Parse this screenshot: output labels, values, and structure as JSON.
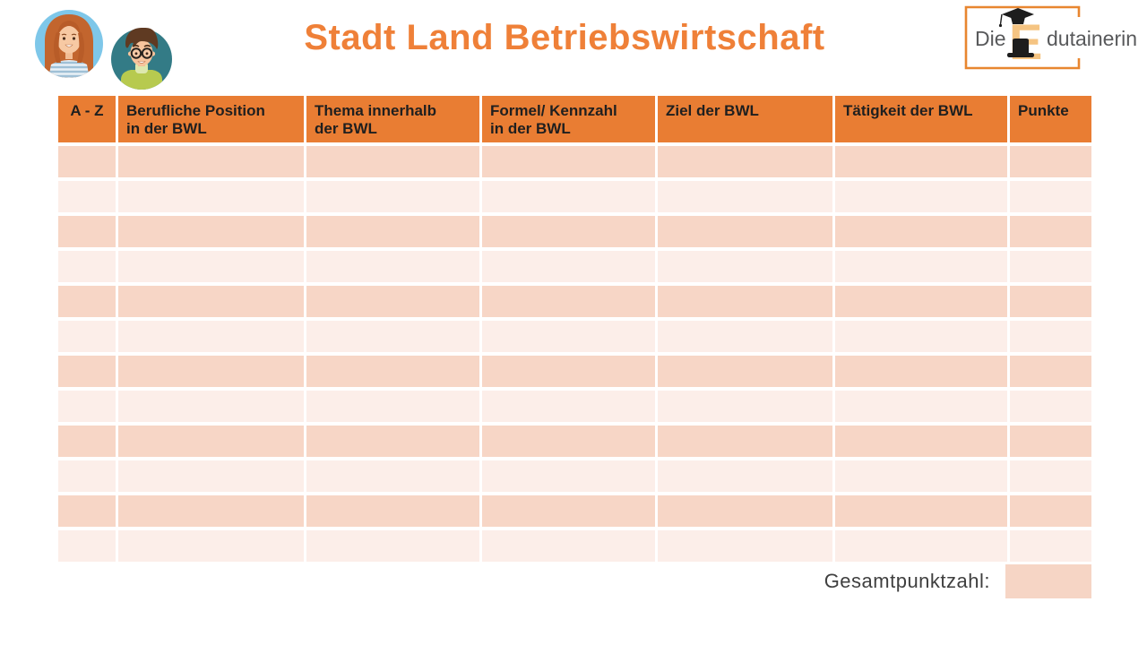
{
  "page": {
    "title": "Stadt Land Betriebswirtschaft"
  },
  "branding": {
    "logo_prefix": "Die",
    "logo_letter": "E",
    "logo_suffix": "dutainerin",
    "icons": {
      "avatar_left": "female-student-avatar",
      "avatar_right": "male-student-avatar",
      "logo_cap": "graduation-cap",
      "logo_hat": "top-hat"
    }
  },
  "table": {
    "columns": [
      "A - Z",
      "Berufliche Position\nin der BWL",
      "Thema innerhalb\nder BWL",
      "Formel/ Kennzahl\nin der BWL",
      "Ziel der BWL",
      "Tätigkeit der BWL",
      "Punkte"
    ],
    "row_count": 12,
    "rows": [
      [
        "",
        "",
        "",
        "",
        "",
        "",
        ""
      ],
      [
        "",
        "",
        "",
        "",
        "",
        "",
        ""
      ],
      [
        "",
        "",
        "",
        "",
        "",
        "",
        ""
      ],
      [
        "",
        "",
        "",
        "",
        "",
        "",
        ""
      ],
      [
        "",
        "",
        "",
        "",
        "",
        "",
        ""
      ],
      [
        "",
        "",
        "",
        "",
        "",
        "",
        ""
      ],
      [
        "",
        "",
        "",
        "",
        "",
        "",
        ""
      ],
      [
        "",
        "",
        "",
        "",
        "",
        "",
        ""
      ],
      [
        "",
        "",
        "",
        "",
        "",
        "",
        ""
      ],
      [
        "",
        "",
        "",
        "",
        "",
        "",
        ""
      ],
      [
        "",
        "",
        "",
        "",
        "",
        "",
        ""
      ],
      [
        "",
        "",
        "",
        "",
        "",
        "",
        ""
      ]
    ]
  },
  "footer": {
    "total_label": "Gesamtpunktzahl:",
    "total_value": ""
  },
  "colors": {
    "accent_orange": "#E97D33",
    "title_orange": "#EF8038",
    "row_dark": "#F7D6C6",
    "row_light": "#FCEEE9",
    "header_text": "#1F1F1F",
    "logo_letter": "#F5C482",
    "logo_text": "#58595B",
    "logo_frame": "#E8862F"
  }
}
